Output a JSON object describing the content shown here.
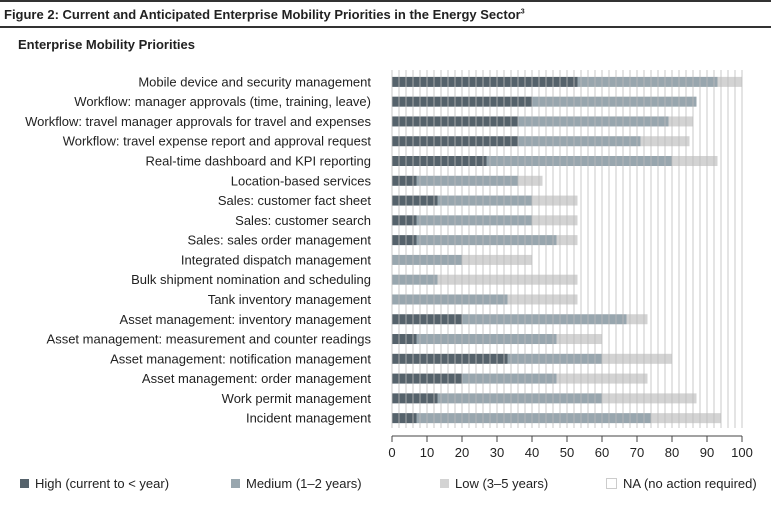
{
  "figure": {
    "title": "Figure 2: Current and Anticipated Enterprise Mobility Priorities in the Energy Sector",
    "footnote_mark": "3"
  },
  "chart_data": {
    "type": "bar",
    "orientation": "horizontal",
    "stacked": true,
    "title": "Enterprise Mobility Priorities",
    "xlabel": "",
    "ylabel": "",
    "xlim": [
      0,
      100
    ],
    "xticks": [
      0,
      10,
      20,
      30,
      40,
      50,
      60,
      70,
      80,
      90,
      100
    ],
    "grid": true,
    "legend_position": "bottom",
    "categories": [
      "Mobile device and security management",
      "Workflow: manager approvals (time, training, leave)",
      "Workflow: travel manager approvals for travel and expenses",
      "Workflow: travel expense report and approval request",
      "Real-time dashboard and KPI reporting",
      "Location-based services",
      "Sales: customer fact sheet",
      "Sales: customer search",
      "Sales: sales order management",
      "Integrated dispatch management",
      "Bulk shipment nomination and scheduling",
      "Tank inventory management",
      "Asset management: inventory management",
      "Asset management: measurement and counter readings",
      "Asset management: notification management",
      "Asset management: order management",
      "Work permit management",
      "Incident management"
    ],
    "series": [
      {
        "name": "High (current to < year)",
        "color": "#55626b",
        "values": [
          53,
          40,
          36,
          36,
          27,
          7,
          13,
          7,
          7,
          0,
          0,
          0,
          20,
          7,
          33,
          20,
          13,
          7
        ]
      },
      {
        "name": "Medium (1–2 years)",
        "color": "#98a6ae",
        "values": [
          40,
          47,
          43,
          35,
          53,
          29,
          27,
          33,
          40,
          20,
          13,
          33,
          47,
          40,
          27,
          27,
          47,
          67
        ]
      },
      {
        "name": "Low (3–5 years)",
        "color": "#d3d3d3",
        "values": [
          7,
          0,
          7,
          14,
          13,
          7,
          13,
          13,
          6,
          20,
          40,
          20,
          6,
          13,
          20,
          26,
          27,
          20
        ]
      },
      {
        "name": "NA (no action required)",
        "color": "#ffffff",
        "values": [
          0,
          13,
          14,
          15,
          7,
          57,
          47,
          47,
          47,
          60,
          47,
          47,
          27,
          40,
          20,
          27,
          13,
          6
        ]
      }
    ]
  }
}
